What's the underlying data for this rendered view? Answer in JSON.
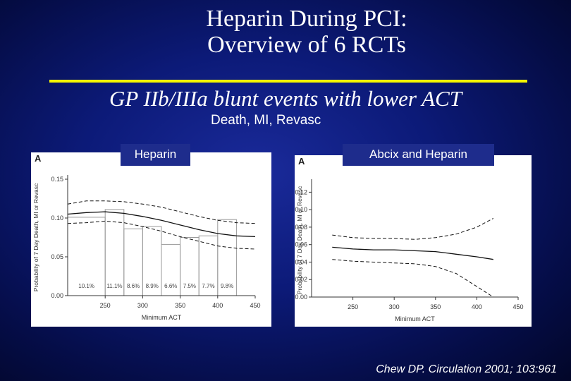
{
  "title": {
    "line1": "Heparin During PCI:",
    "line2": "Overview of 6 RCTs"
  },
  "subtitle": "GP IIb/IIIa blunt events with lower ACT",
  "subtitle2": "Death, MI, Revasc",
  "labels": {
    "left": "Heparin",
    "right": "Abcix and Heparin"
  },
  "citation": "Chew DP.  Circulation 2001; 103:961",
  "colors": {
    "background": "#0c1a78",
    "rule": "#f4f400",
    "label_box": "#1e2c8c"
  },
  "chart_data": [
    {
      "type": "line",
      "panel_letter": "A",
      "xlabel": "Minimum ACT",
      "ylabel": "Probability of 7 Day Death, MI or Revasc",
      "xlim": [
        200,
        450
      ],
      "ylim": [
        0,
        0.15
      ],
      "xticks": [
        250,
        300,
        350,
        400,
        450
      ],
      "yticks": [
        0.0,
        0.05,
        0.1,
        0.15
      ],
      "ytick_labels": [
        "0.00",
        "0.05",
        "0.10",
        "0.15"
      ],
      "series": [
        {
          "style": "solid",
          "x": [
            200,
            225,
            250,
            275,
            300,
            325,
            350,
            375,
            400,
            425,
            450
          ],
          "y": [
            0.105,
            0.107,
            0.108,
            0.106,
            0.102,
            0.097,
            0.091,
            0.085,
            0.08,
            0.077,
            0.076
          ]
        },
        {
          "style": "dashed",
          "x": [
            200,
            225,
            250,
            275,
            300,
            325,
            350,
            375,
            400,
            425,
            450
          ],
          "y": [
            0.118,
            0.122,
            0.122,
            0.121,
            0.118,
            0.114,
            0.108,
            0.102,
            0.097,
            0.094,
            0.093
          ]
        },
        {
          "style": "dashed",
          "x": [
            200,
            225,
            250,
            275,
            300,
            325,
            350,
            375,
            400,
            425,
            450
          ],
          "y": [
            0.093,
            0.094,
            0.096,
            0.094,
            0.089,
            0.083,
            0.076,
            0.07,
            0.064,
            0.061,
            0.06
          ]
        }
      ],
      "bars": {
        "edges": [
          200,
          250,
          275,
          300,
          325,
          350,
          375,
          400,
          425
        ],
        "values": [
          0.101,
          0.111,
          0.086,
          0.089,
          0.066,
          0.075,
          0.077,
          0.098
        ],
        "labels": [
          "10.1%",
          "11.1%",
          "8.6%",
          "8.9%",
          "6.6%",
          "7.5%",
          "7.7%",
          "9.8%"
        ]
      }
    },
    {
      "type": "line",
      "panel_letter": "A",
      "xlabel": "Minimum ACT",
      "ylabel": "Probability of 7 Day Death, MI or Revasc",
      "xlim": [
        200,
        450
      ],
      "ylim": [
        0,
        0.13
      ],
      "xticks": [
        250,
        300,
        350,
        400,
        450
      ],
      "yticks": [
        0.0,
        0.02,
        0.04,
        0.06,
        0.08,
        0.1,
        0.12
      ],
      "ytick_labels": [
        "0.00",
        "0.02",
        "0.04",
        "0.06",
        "0.08",
        "0.10",
        "0.12"
      ],
      "series": [
        {
          "style": "solid",
          "x": [
            225,
            250,
            275,
            300,
            325,
            350,
            375,
            400,
            420
          ],
          "y": [
            0.057,
            0.055,
            0.054,
            0.054,
            0.053,
            0.052,
            0.049,
            0.046,
            0.043
          ]
        },
        {
          "style": "dashed",
          "x": [
            225,
            250,
            275,
            300,
            325,
            350,
            375,
            400,
            420
          ],
          "y": [
            0.071,
            0.068,
            0.067,
            0.067,
            0.066,
            0.068,
            0.072,
            0.08,
            0.09
          ]
        },
        {
          "style": "dashed",
          "x": [
            225,
            250,
            275,
            300,
            325,
            350,
            375,
            400,
            420
          ],
          "y": [
            0.043,
            0.041,
            0.04,
            0.039,
            0.038,
            0.035,
            0.027,
            0.012,
            0.0
          ]
        }
      ]
    }
  ]
}
